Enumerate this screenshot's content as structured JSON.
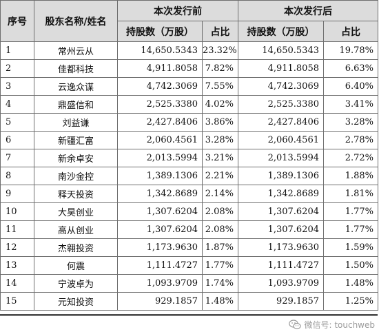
{
  "header": {
    "seq": "序号",
    "name": "股东名称/姓名",
    "before": "本次发行前",
    "after": "本次发行后",
    "shares": "持股数（万股）",
    "ratio": "占比"
  },
  "rows": [
    {
      "no": "1",
      "name": "常州云从",
      "before_shares": "14,650.5343",
      "before_ratio": "23.32%",
      "after_shares": "14,650.5343",
      "after_ratio": "19.78%"
    },
    {
      "no": "2",
      "name": "佳都科技",
      "before_shares": "4,911.8058",
      "before_ratio": "7.82%",
      "after_shares": "4,911.8058",
      "after_ratio": "6.63%"
    },
    {
      "no": "3",
      "name": "云逸众谋",
      "before_shares": "4,742.3069",
      "before_ratio": "7.55%",
      "after_shares": "4,742.3069",
      "after_ratio": "6.40%"
    },
    {
      "no": "4",
      "name": "鼎盛信和",
      "before_shares": "2,525.3380",
      "before_ratio": "4.02%",
      "after_shares": "2,525.3380",
      "after_ratio": "3.41%"
    },
    {
      "no": "5",
      "name": "刘益谦",
      "before_shares": "2,427.8406",
      "before_ratio": "3.86%",
      "after_shares": "2,427.8406",
      "after_ratio": "3.28%"
    },
    {
      "no": "6",
      "name": "新疆汇富",
      "before_shares": "2,060.4561",
      "before_ratio": "3.28%",
      "after_shares": "2,060.4561",
      "after_ratio": "2.78%"
    },
    {
      "no": "7",
      "name": "新余卓安",
      "before_shares": "2,013.5994",
      "before_ratio": "3.21%",
      "after_shares": "2,013.5994",
      "after_ratio": "2.72%"
    },
    {
      "no": "8",
      "name": "南沙金控",
      "before_shares": "1,389.1306",
      "before_ratio": "2.21%",
      "after_shares": "1,389.1306",
      "after_ratio": "1.88%"
    },
    {
      "no": "9",
      "name": "释天投资",
      "before_shares": "1,342.8689",
      "before_ratio": "2.14%",
      "after_shares": "1,342.8689",
      "after_ratio": "1.81%"
    },
    {
      "no": "10",
      "name": "大昊创业",
      "before_shares": "1,307.6204",
      "before_ratio": "2.08%",
      "after_shares": "1,307.6204",
      "after_ratio": "1.77%"
    },
    {
      "no": "11",
      "name": "高从创业",
      "before_shares": "1,307.6204",
      "before_ratio": "2.08%",
      "after_shares": "1,307.6204",
      "after_ratio": "1.77%"
    },
    {
      "no": "12",
      "name": "杰翱投资",
      "before_shares": "1,173.9630",
      "before_ratio": "1.87%",
      "after_shares": "1,173.9630",
      "after_ratio": "1.59%"
    },
    {
      "no": "13",
      "name": "何震",
      "before_shares": "1,111.4727",
      "before_ratio": "1.77%",
      "after_shares": "1,111.4727",
      "after_ratio": "1.50%"
    },
    {
      "no": "14",
      "name": "宁波卓为",
      "before_shares": "1,093.9709",
      "before_ratio": "1.74%",
      "after_shares": "1,093.9709",
      "after_ratio": "1.48%"
    },
    {
      "no": "15",
      "name": "元知投资",
      "before_shares": "929.1857",
      "before_ratio": "1.48%",
      "after_shares": "929.1857",
      "after_ratio": "1.25%"
    }
  ],
  "watermark": {
    "icon": "wechat-icon",
    "text": "微信号: touchweb"
  }
}
